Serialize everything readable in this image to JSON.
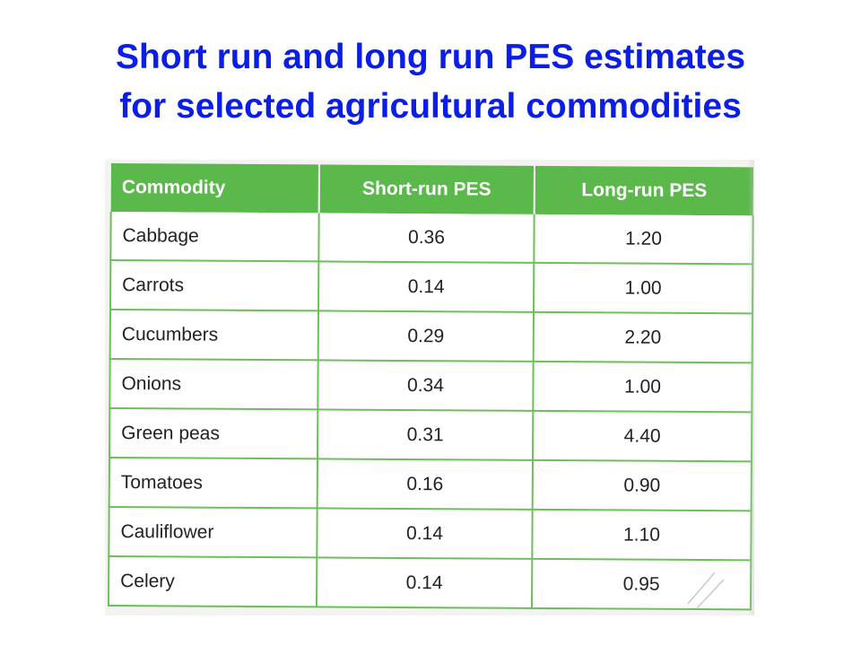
{
  "title": {
    "line1": "Short run and long run PES estimates",
    "line2": "for selected agricultural commodities"
  },
  "table": {
    "headers": [
      "Commodity",
      "Short-run PES",
      "Long-run PES"
    ],
    "rows": [
      [
        "Cabbage",
        "0.36",
        "1.20"
      ],
      [
        "Carrots",
        "0.14",
        "1.00"
      ],
      [
        "Cucumbers",
        "0.29",
        "2.20"
      ],
      [
        "Onions",
        "0.34",
        "1.00"
      ],
      [
        "Green peas",
        "0.31",
        "4.40"
      ],
      [
        "Tomatoes",
        "0.16",
        "0.90"
      ],
      [
        "Cauliflower",
        "0.14",
        "1.10"
      ],
      [
        "Celery",
        "0.14",
        "0.95"
      ]
    ]
  },
  "colors": {
    "title": "#0B1EE6",
    "header_bg": "#5BB84A",
    "grid_line": "#6DBF5C"
  }
}
